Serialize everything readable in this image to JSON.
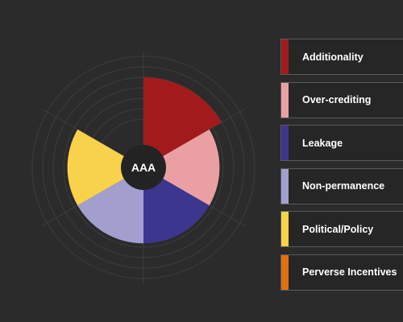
{
  "chart_data": {
    "type": "pie",
    "center_label": "AAA",
    "grid": true,
    "legend_position": "right",
    "categories": [
      "Additionality",
      "Over-crediting",
      "Leakage",
      "Non-permanence",
      "Political/Policy",
      "Perverse Incentives"
    ],
    "values": [
      1,
      1,
      1,
      1,
      1,
      1
    ],
    "magnitudes": [
      1.0,
      0.8,
      0.8,
      0.8,
      0.8,
      0.0
    ],
    "colors": [
      "#a31a1d",
      "#eaa0a2",
      "#3c368f",
      "#a29fcf",
      "#f8d24a",
      "#e2700f"
    ]
  }
}
